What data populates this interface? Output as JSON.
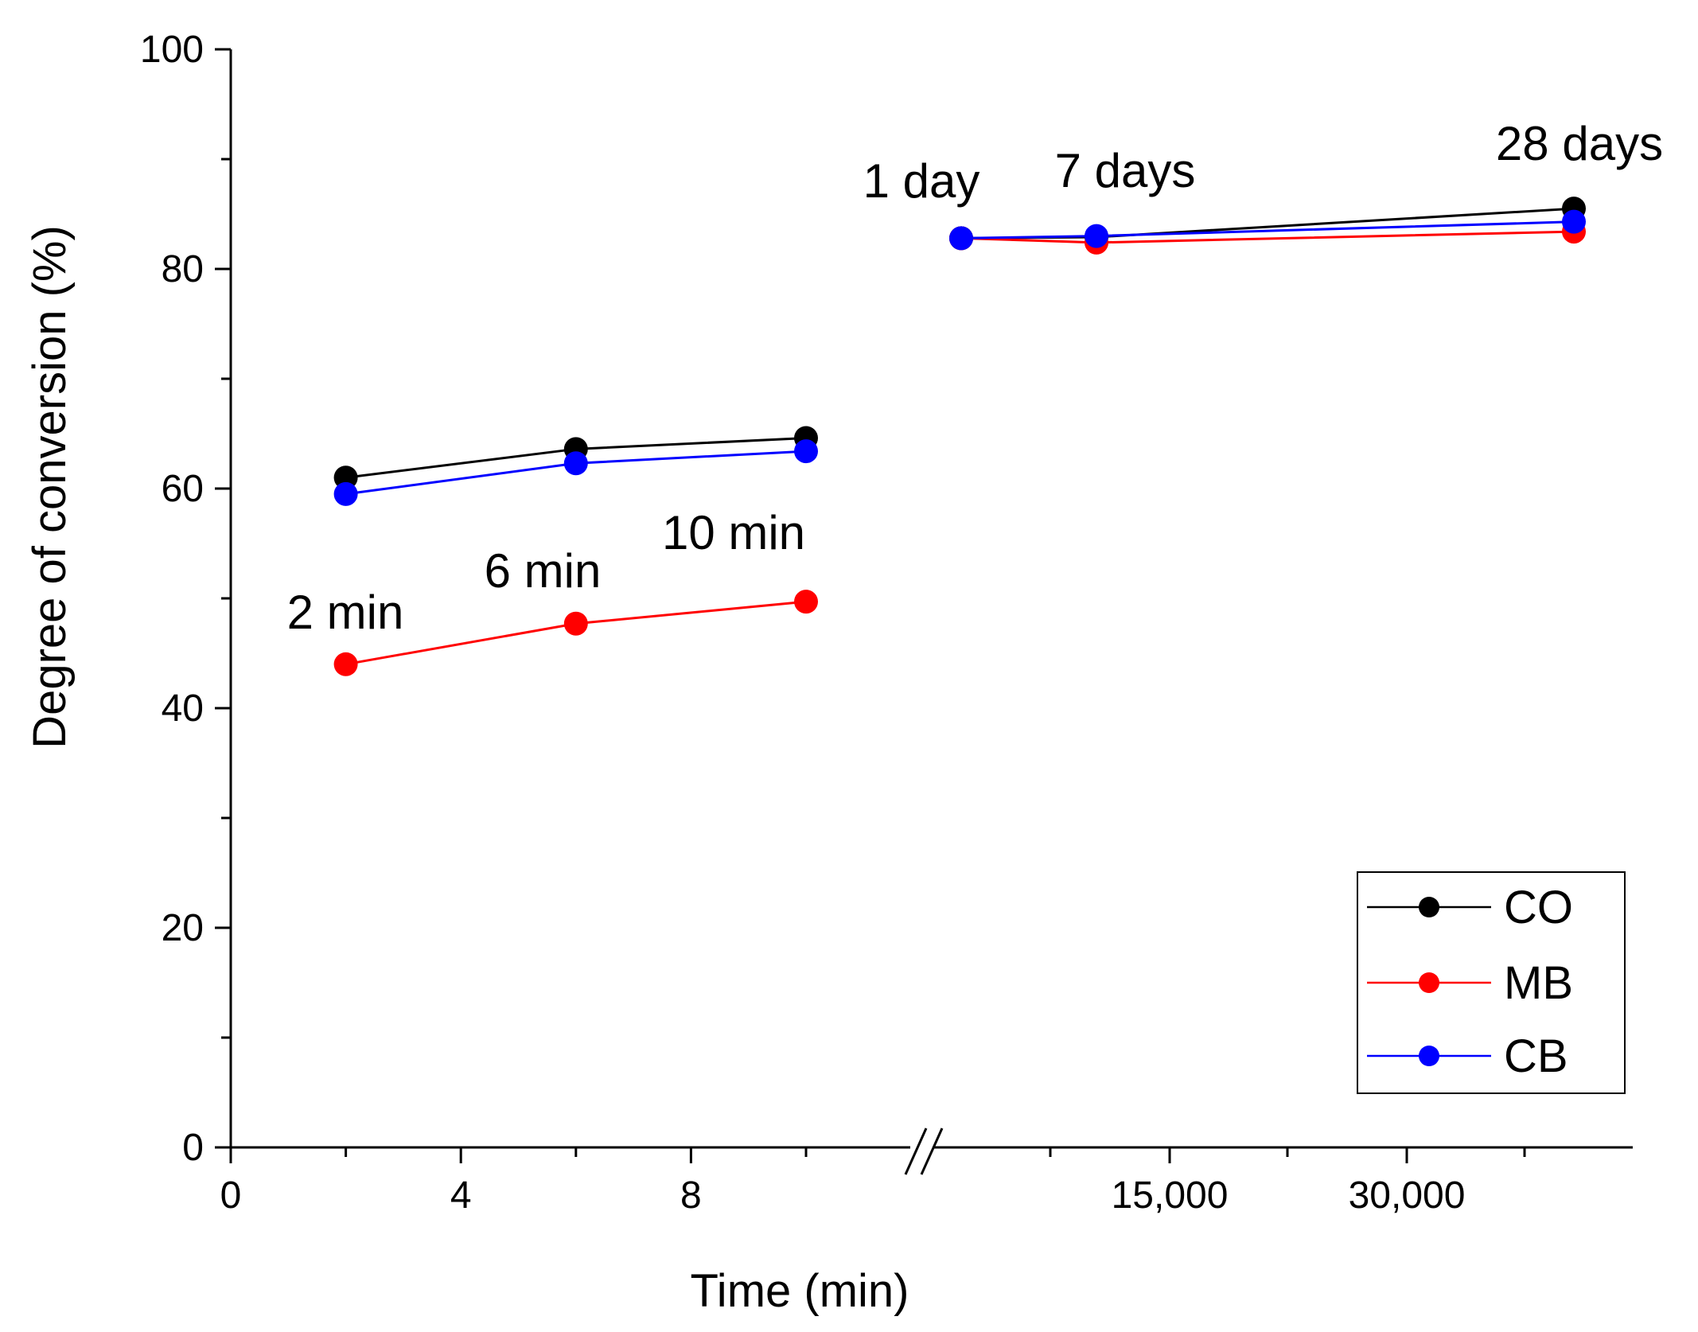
{
  "chart_data": {
    "type": "line",
    "title": "",
    "xlabel": "Time (min)",
    "ylabel": "Degree of conversion (%)",
    "ylim": [
      0,
      100
    ],
    "y_ticks": [
      "0",
      "20",
      "40",
      "60",
      "80",
      "100"
    ],
    "x_axis_break": true,
    "x_segments": [
      {
        "range": [
          0,
          12
        ],
        "ticks": [
          "0",
          "4",
          "8"
        ],
        "x": [
          2,
          6,
          10
        ]
      },
      {
        "ticks": [
          "15,000",
          "30,000"
        ],
        "x": [
          1440,
          10080,
          40320
        ]
      }
    ],
    "annotations": {
      "segment1": [
        "2 min",
        "6 min",
        "10 min"
      ],
      "segment2": [
        "1 day",
        "7 days",
        "28 days"
      ]
    },
    "series": [
      {
        "name": "CO",
        "color": "#000000",
        "segment1": [
          61.0,
          63.6,
          64.6
        ],
        "segment2": [
          82.8,
          82.9,
          85.5
        ]
      },
      {
        "name": "MB",
        "color": "#ff0000",
        "segment1": [
          44.0,
          47.7,
          49.7
        ],
        "segment2": [
          82.8,
          82.4,
          83.4
        ]
      },
      {
        "name": "CB",
        "color": "#0000ff",
        "segment1": [
          59.5,
          62.3,
          63.4
        ],
        "segment2": [
          82.8,
          83.0,
          84.3
        ]
      }
    ],
    "legend": {
      "position": "bottom-right",
      "entries": [
        "CO",
        "MB",
        "CB"
      ]
    },
    "grid": false
  }
}
